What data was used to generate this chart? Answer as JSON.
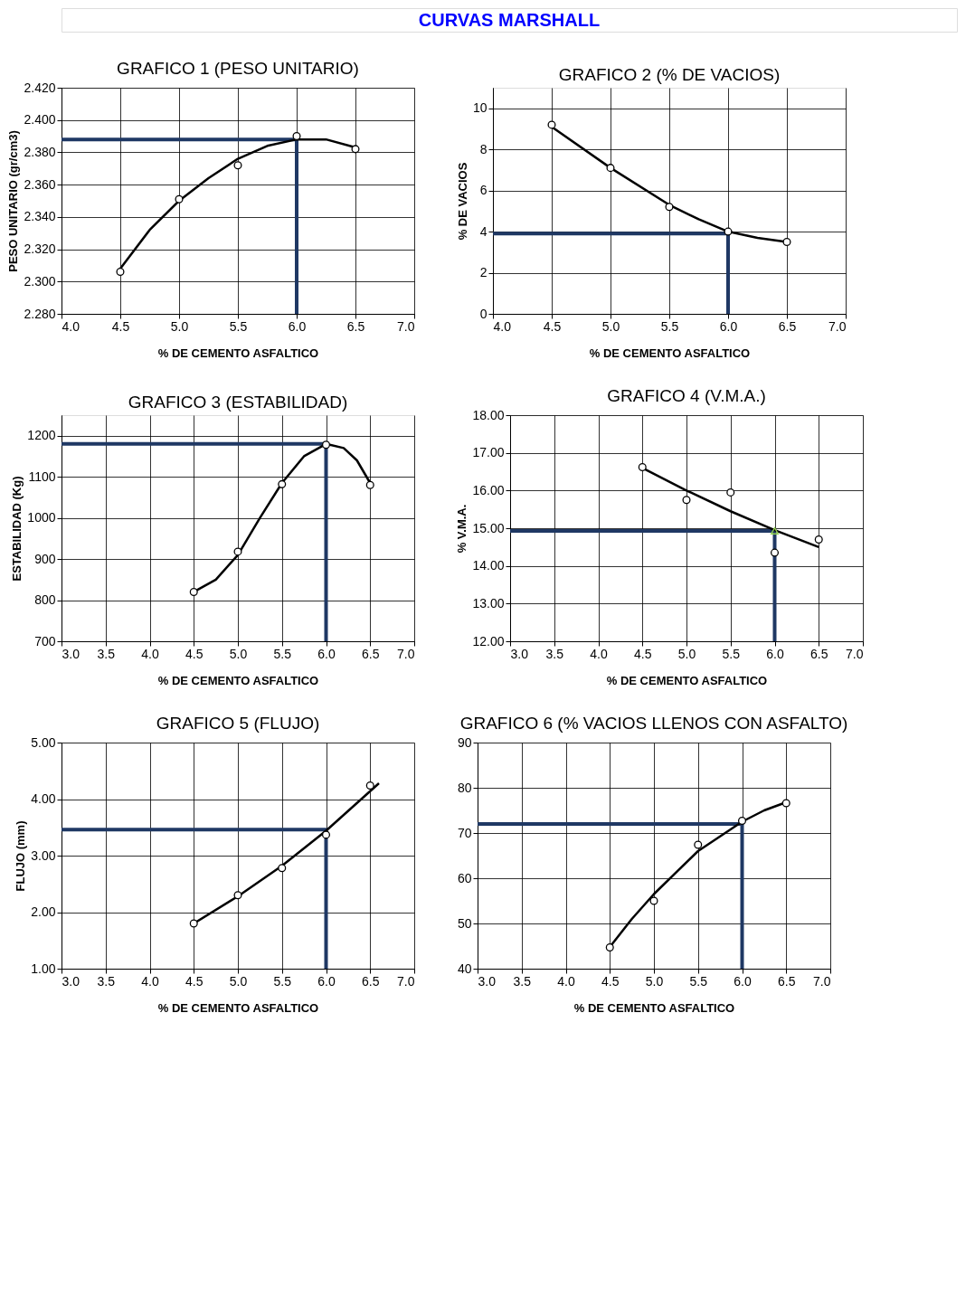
{
  "chart_data": [
    {
      "type": "other",
      "title": "CURVAS MARSHALL"
    },
    {
      "type": "scatter",
      "title": "GRAFICO 1 (PESO UNITARIO)",
      "xlabel": "% DE CEMENTO ASFALTICO",
      "ylabel": "PESO UNITARIO (gr/cm3)",
      "xlim": [
        4.0,
        7.0
      ],
      "ylim": [
        2.28,
        2.42
      ],
      "grid": true,
      "xticks": [
        {
          "value": 4.0,
          "label": "4.0"
        },
        {
          "value": 4.5,
          "label": "4.5"
        },
        {
          "value": 5.0,
          "label": "5.0"
        },
        {
          "value": 5.5,
          "label": "5.5"
        },
        {
          "value": 6.0,
          "label": "6.0"
        },
        {
          "value": 6.5,
          "label": "6.5"
        },
        {
          "value": 7.0,
          "label": "7.0"
        }
      ],
      "yticks": [
        {
          "value": 2.28,
          "label": "2.280"
        },
        {
          "value": 2.3,
          "label": "2.300"
        },
        {
          "value": 2.32,
          "label": "2.320"
        },
        {
          "value": 2.34,
          "label": "2.340"
        },
        {
          "value": 2.36,
          "label": "2.360"
        },
        {
          "value": 2.38,
          "label": "2.380"
        },
        {
          "value": 2.4,
          "label": "2.400"
        },
        {
          "value": 2.42,
          "label": "2.420"
        }
      ],
      "series": [
        {
          "type": "line",
          "color": "#1f3864",
          "x": [
            4.0,
            6.0,
            6.0
          ],
          "values": [
            2.388,
            2.388,
            2.28
          ]
        },
        {
          "type": "line",
          "color": "#000000",
          "x": [
            4.5,
            4.75,
            5.0,
            5.25,
            5.5,
            5.75,
            6.0,
            6.25,
            6.5
          ],
          "values": [
            2.308,
            2.332,
            2.35,
            2.364,
            2.376,
            2.384,
            2.388,
            2.388,
            2.383
          ]
        },
        {
          "type": "scatter",
          "color": "#000000",
          "marker": "circle",
          "x": [
            4.5,
            5.0,
            5.5,
            6.0,
            6.5
          ],
          "values": [
            2.306,
            2.351,
            2.372,
            2.39,
            2.382
          ]
        }
      ]
    },
    {
      "type": "scatter",
      "title": "GRAFICO 2 (% DE VACIOS)",
      "xlabel": "% DE CEMENTO ASFALTICO",
      "ylabel": "% DE VACIOS",
      "xlim": [
        4.0,
        7.0
      ],
      "ylim": [
        0,
        11
      ],
      "grid": true,
      "xticks": [
        {
          "value": 4.0,
          "label": "4.0"
        },
        {
          "value": 4.5,
          "label": "4.5"
        },
        {
          "value": 5.0,
          "label": "5.0"
        },
        {
          "value": 5.5,
          "label": "5.5"
        },
        {
          "value": 6.0,
          "label": "6.0"
        },
        {
          "value": 6.5,
          "label": "6.5"
        },
        {
          "value": 7.0,
          "label": "7.0"
        }
      ],
      "yticks": [
        0,
        2,
        4,
        6,
        8,
        10
      ],
      "series": [
        {
          "type": "line",
          "color": "#1f3864",
          "x": [
            4.0,
            6.0,
            6.0
          ],
          "values": [
            3.9,
            3.9,
            0
          ]
        },
        {
          "type": "line",
          "color": "#000000",
          "x": [
            4.5,
            5.0,
            5.5,
            5.75,
            6.0,
            6.25,
            6.5
          ],
          "values": [
            9.1,
            7.1,
            5.3,
            4.6,
            4.0,
            3.7,
            3.5
          ]
        },
        {
          "type": "scatter",
          "color": "#000000",
          "marker": "circle",
          "x": [
            4.5,
            5.0,
            5.5,
            6.0,
            6.5
          ],
          "values": [
            9.2,
            7.1,
            5.2,
            4.0,
            3.5
          ]
        }
      ]
    },
    {
      "type": "scatter",
      "title": "GRAFICO 3 (ESTABILIDAD)",
      "xlabel": "% DE CEMENTO ASFALTICO",
      "ylabel": "ESTABILIDAD  (Kg)",
      "xlim": [
        3.0,
        7.0
      ],
      "ylim": [
        700,
        1250
      ],
      "grid": true,
      "xticks": [
        {
          "value": 3.0,
          "label": "3.0"
        },
        {
          "value": 3.5,
          "label": "3.5"
        },
        {
          "value": 4.0,
          "label": "4.0"
        },
        {
          "value": 4.5,
          "label": "4.5"
        },
        {
          "value": 5.0,
          "label": "5.0"
        },
        {
          "value": 5.5,
          "label": "5.5"
        },
        {
          "value": 6.0,
          "label": "6.0"
        },
        {
          "value": 6.5,
          "label": "6.5"
        },
        {
          "value": 7.0,
          "label": "7.0"
        }
      ],
      "yticks": [
        700,
        800,
        900,
        1000,
        1100,
        1200
      ],
      "series": [
        {
          "type": "line",
          "color": "#1f3864",
          "x": [
            3.0,
            6.0,
            6.0
          ],
          "values": [
            1180,
            1180,
            700
          ]
        },
        {
          "type": "line",
          "color": "#000000",
          "x": [
            4.5,
            4.75,
            5.0,
            5.25,
            5.5,
            5.75,
            6.0,
            6.2,
            6.35,
            6.5
          ],
          "values": [
            820,
            850,
            910,
            1000,
            1085,
            1150,
            1180,
            1170,
            1140,
            1085
          ]
        },
        {
          "type": "scatter",
          "color": "#000000",
          "marker": "circle",
          "x": [
            4.5,
            5.0,
            5.5,
            6.0,
            6.5
          ],
          "values": [
            820,
            918,
            1082,
            1178,
            1080
          ]
        }
      ]
    },
    {
      "type": "scatter",
      "title": "GRAFICO 4 (V.M.A.)",
      "xlabel": "% DE CEMENTO ASFALTICO",
      "ylabel": "% V.M.A.",
      "xlim": [
        3.0,
        7.0
      ],
      "ylim": [
        12,
        18
      ],
      "grid": true,
      "xticks": [
        {
          "value": 3.0,
          "label": "3.0"
        },
        {
          "value": 3.5,
          "label": "3.5"
        },
        {
          "value": 4.0,
          "label": "4.0"
        },
        {
          "value": 4.5,
          "label": "4.5"
        },
        {
          "value": 5.0,
          "label": "5.0"
        },
        {
          "value": 5.5,
          "label": "5.5"
        },
        {
          "value": 6.0,
          "label": "6.0"
        },
        {
          "value": 6.5,
          "label": "6.5"
        },
        {
          "value": 7.0,
          "label": "7.0"
        }
      ],
      "yticks": [
        {
          "value": 12,
          "label": "12.00"
        },
        {
          "value": 13,
          "label": "13.00"
        },
        {
          "value": 14,
          "label": "14.00"
        },
        {
          "value": 15,
          "label": "15.00"
        },
        {
          "value": 16,
          "label": "16.00"
        },
        {
          "value": 17,
          "label": "17.00"
        },
        {
          "value": 18,
          "label": "18.00"
        }
      ],
      "series": [
        {
          "type": "line",
          "color": "#1f3864",
          "x": [
            3.0,
            6.0,
            6.0
          ],
          "values": [
            14.93,
            14.93,
            12
          ]
        },
        {
          "type": "line",
          "color": "#000000",
          "x": [
            4.5,
            5.0,
            5.5,
            6.0,
            6.5
          ],
          "values": [
            16.6,
            16.0,
            15.45,
            14.95,
            14.5
          ]
        },
        {
          "type": "scatter",
          "color": "#000000",
          "marker": "circle",
          "x": [
            4.5,
            5.0,
            5.5,
            6.0,
            6.5
          ],
          "values": [
            16.62,
            15.75,
            15.95,
            14.35,
            14.7
          ]
        },
        {
          "type": "scatter",
          "color": "#92d050",
          "marker": "triangle",
          "x": [
            6.0
          ],
          "values": [
            14.93
          ]
        }
      ]
    },
    {
      "type": "scatter",
      "title": "GRAFICO 5 (FLUJO)",
      "xlabel": "% DE CEMENTO ASFALTICO",
      "ylabel": "FLUJO (mm)",
      "xlim": [
        3.0,
        7.0
      ],
      "ylim": [
        1,
        5
      ],
      "grid": true,
      "xticks": [
        {
          "value": 3.0,
          "label": "3.0"
        },
        {
          "value": 3.5,
          "label": "3.5"
        },
        {
          "value": 4.0,
          "label": "4.0"
        },
        {
          "value": 4.5,
          "label": "4.5"
        },
        {
          "value": 5.0,
          "label": "5.0"
        },
        {
          "value": 5.5,
          "label": "5.5"
        },
        {
          "value": 6.0,
          "label": "6.0"
        },
        {
          "value": 6.5,
          "label": "6.5"
        },
        {
          "value": 7.0,
          "label": "7.0"
        }
      ],
      "yticks": [
        {
          "value": 1,
          "label": "1.00"
        },
        {
          "value": 2,
          "label": "2.00"
        },
        {
          "value": 3,
          "label": "3.00"
        },
        {
          "value": 4,
          "label": "4.00"
        },
        {
          "value": 5,
          "label": "5.00"
        }
      ],
      "series": [
        {
          "type": "line",
          "color": "#1f3864",
          "x": [
            3.0,
            6.0,
            6.0
          ],
          "values": [
            3.46,
            3.46,
            1
          ]
        },
        {
          "type": "line",
          "color": "#000000",
          "x": [
            4.5,
            5.0,
            5.5,
            6.0,
            6.6
          ],
          "values": [
            1.8,
            2.28,
            2.82,
            3.44,
            4.28
          ]
        },
        {
          "type": "scatter",
          "color": "#000000",
          "marker": "circle",
          "x": [
            4.5,
            5.0,
            5.5,
            6.0,
            6.5
          ],
          "values": [
            1.8,
            2.3,
            2.78,
            3.37,
            4.24
          ]
        }
      ]
    },
    {
      "type": "scatter",
      "title": "GRAFICO 6 (% VACIOS LLENOS CON ASFALTO)",
      "xlabel": "% DE CEMENTO ASFALTICO",
      "xlim": [
        3.0,
        7.0
      ],
      "ylim": [
        40,
        90
      ],
      "grid": true,
      "xticks": [
        {
          "value": 3.0,
          "label": "3.0"
        },
        {
          "value": 3.5,
          "label": "3.5"
        },
        {
          "value": 4.0,
          "label": "4.0"
        },
        {
          "value": 4.5,
          "label": "4.5"
        },
        {
          "value": 5.0,
          "label": "5.0"
        },
        {
          "value": 5.5,
          "label": "5.5"
        },
        {
          "value": 6.0,
          "label": "6.0"
        },
        {
          "value": 6.5,
          "label": "6.5"
        },
        {
          "value": 7.0,
          "label": "7.0"
        }
      ],
      "yticks": [
        40,
        50,
        60,
        70,
        80,
        90
      ],
      "series": [
        {
          "type": "line",
          "color": "#1f3864",
          "x": [
            3.0,
            6.0,
            6.0
          ],
          "values": [
            72,
            72,
            40
          ]
        },
        {
          "type": "line",
          "color": "#000000",
          "x": [
            4.5,
            4.75,
            5.0,
            5.5,
            6.0,
            6.25,
            6.5
          ],
          "values": [
            44.8,
            51,
            56.5,
            66,
            72.5,
            75,
            76.8
          ]
        },
        {
          "type": "scatter",
          "color": "#000000",
          "marker": "circle",
          "x": [
            4.5,
            5.0,
            5.5,
            6.0,
            6.5
          ],
          "values": [
            44.7,
            55.0,
            67.4,
            72.7,
            76.6
          ]
        }
      ]
    }
  ]
}
